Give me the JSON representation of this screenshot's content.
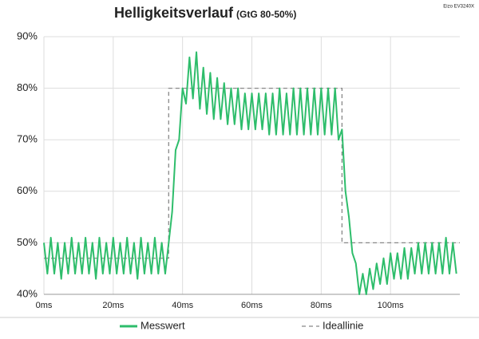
{
  "chart_data": {
    "type": "line",
    "title": "Helligkeitsverlauf",
    "subtitle": "(GtG 80-50%)",
    "annotation": "Eizo EV3240X",
    "xlim": [
      0,
      120
    ],
    "xticks": [
      {
        "value": 0,
        "label": "0ms"
      },
      {
        "value": 20,
        "label": "20ms"
      },
      {
        "value": 40,
        "label": "40ms"
      },
      {
        "value": 60,
        "label": "60ms"
      },
      {
        "value": 80,
        "label": "80ms"
      },
      {
        "value": 100,
        "label": "100ms"
      }
    ],
    "ylim": [
      40,
      90
    ],
    "yticks": [
      {
        "value": 40,
        "label": "40%"
      },
      {
        "value": 50,
        "label": "50%"
      },
      {
        "value": 60,
        "label": "60%"
      },
      {
        "value": 70,
        "label": "70%"
      },
      {
        "value": 80,
        "label": "80%"
      },
      {
        "value": 90,
        "label": "90%"
      }
    ],
    "grid": true,
    "legend": "bottom",
    "series": [
      {
        "name": "Messwert",
        "color": "#2ebd6b",
        "style": "solid",
        "x": [
          0,
          1,
          2,
          3,
          4,
          5,
          6,
          7,
          8,
          9,
          10,
          11,
          12,
          13,
          14,
          15,
          16,
          17,
          18,
          19,
          20,
          21,
          22,
          23,
          24,
          25,
          26,
          27,
          28,
          29,
          30,
          31,
          32,
          33,
          34,
          35,
          36,
          37,
          38,
          39,
          40,
          41,
          42,
          43,
          44,
          45,
          46,
          47,
          48,
          49,
          50,
          51,
          52,
          53,
          54,
          55,
          56,
          57,
          58,
          59,
          60,
          61,
          62,
          63,
          64,
          65,
          66,
          67,
          68,
          69,
          70,
          71,
          72,
          73,
          74,
          75,
          76,
          77,
          78,
          79,
          80,
          81,
          82,
          83,
          84,
          85,
          86,
          87,
          88,
          89,
          90,
          91,
          92,
          93,
          94,
          95,
          96,
          97,
          98,
          99,
          100,
          101,
          102,
          103,
          104,
          105,
          106,
          107,
          108,
          109,
          110,
          111,
          112,
          113,
          114,
          115,
          116,
          117,
          118,
          119
        ],
        "values": [
          50,
          44,
          51,
          44,
          50,
          43,
          50,
          44,
          51,
          44,
          50,
          44,
          51,
          44,
          50,
          43,
          51,
          44,
          50,
          44,
          51,
          44,
          50,
          44,
          51,
          44,
          50,
          43,
          51,
          44,
          50,
          44,
          51,
          44,
          50,
          44,
          50,
          56,
          68,
          70,
          80,
          77,
          86,
          78,
          87,
          76,
          84,
          75,
          83,
          74,
          82,
          74,
          81,
          73,
          80,
          73,
          80,
          72,
          79,
          72,
          79,
          72,
          79,
          72,
          79,
          71,
          79,
          71,
          80,
          71,
          79,
          71,
          80,
          71,
          80,
          71,
          80,
          71,
          80,
          71,
          80,
          71,
          80,
          71,
          80,
          70,
          72,
          60,
          55,
          48,
          46,
          40,
          44,
          40,
          45,
          41,
          46,
          42,
          47,
          42,
          48,
          43,
          48,
          43,
          49,
          43,
          49,
          44,
          50,
          44,
          50,
          44,
          50,
          44,
          50,
          44,
          51,
          44,
          50,
          44
        ]
      },
      {
        "name": "Ideallinie",
        "color": "#888888",
        "style": "dashed",
        "x": [
          0,
          36,
          36,
          86,
          86,
          120
        ],
        "values": [
          47,
          47,
          80,
          80,
          50,
          50
        ]
      }
    ]
  }
}
